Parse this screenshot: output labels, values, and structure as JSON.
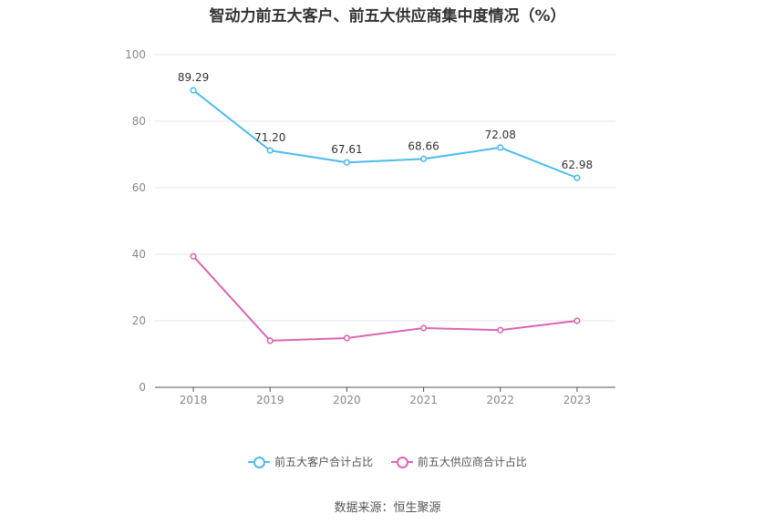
{
  "source": "数据来源：恒生聚源",
  "chart_data": {
    "type": "line",
    "title": "智动力前五大客户、前五大供应商集中度情况（%）",
    "categories": [
      "2018",
      "2019",
      "2020",
      "2021",
      "2022",
      "2023"
    ],
    "ylim": [
      0,
      100
    ],
    "yticks": [
      "0",
      "20",
      "40",
      "60",
      "80",
      "100"
    ],
    "grid": true,
    "legend_position": "bottom",
    "series": [
      {
        "name": "前五大客户合计占比",
        "color": "#4dbbee",
        "values": [
          89.29,
          71.2,
          67.61,
          68.66,
          72.08,
          62.98
        ],
        "labels": [
          "89.29",
          "71.20",
          "67.61",
          "68.66",
          "72.08",
          "62.98"
        ]
      },
      {
        "name": "前五大供应商合计占比",
        "color": "#d966b0",
        "values": [
          39.4,
          14.0,
          14.8,
          17.8,
          17.2,
          20.0
        ],
        "labels": []
      }
    ]
  }
}
